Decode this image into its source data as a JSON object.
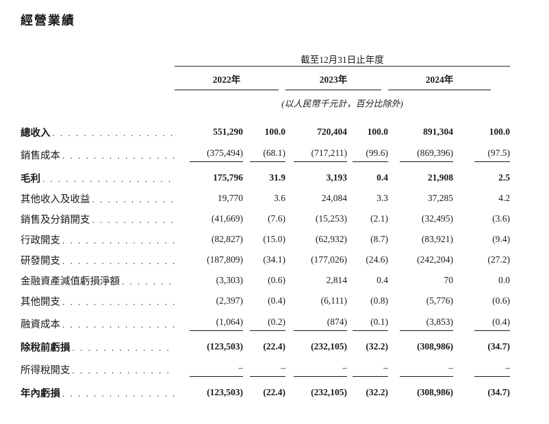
{
  "page": {
    "title": "經營業績"
  },
  "colors": {
    "text": "#1a1a1a",
    "header_rule": "#8a8a8a",
    "row_rule": "#1a1a1a",
    "background": "#ffffff"
  },
  "table": {
    "period_header": "截至12月31日止年度",
    "year_headers": [
      "2022年",
      "2023年",
      "2024年"
    ],
    "unit_note": "(以人民幣千元計，百分比除外)",
    "rows": [
      {
        "label": "總收入",
        "bold": true,
        "underline": false,
        "values": [
          "551,290",
          "100.0",
          "720,404",
          "100.0",
          "891,304",
          "100.0"
        ]
      },
      {
        "label": "銷售成本",
        "bold": false,
        "underline": true,
        "values": [
          "(375,494)",
          "(68.1)",
          "(717,211)",
          "(99.6)",
          "(869,396)",
          "(97.5)"
        ]
      },
      {
        "label": "毛利",
        "bold": true,
        "underline": false,
        "values": [
          "175,796",
          "31.9",
          "3,193",
          "0.4",
          "21,908",
          "2.5"
        ]
      },
      {
        "label": "其他收入及收益",
        "bold": false,
        "underline": false,
        "values": [
          "19,770",
          "3.6",
          "24,084",
          "3.3",
          "37,285",
          "4.2"
        ]
      },
      {
        "label": "銷售及分銷開支",
        "bold": false,
        "underline": false,
        "values": [
          "(41,669)",
          "(7.6)",
          "(15,253)",
          "(2.1)",
          "(32,495)",
          "(3.6)"
        ]
      },
      {
        "label": "行政開支",
        "bold": false,
        "underline": false,
        "values": [
          "(82,827)",
          "(15.0)",
          "(62,932)",
          "(8.7)",
          "(83,921)",
          "(9.4)"
        ]
      },
      {
        "label": "研發開支",
        "bold": false,
        "underline": false,
        "values": [
          "(187,809)",
          "(34.1)",
          "(177,026)",
          "(24.6)",
          "(242,204)",
          "(27.2)"
        ]
      },
      {
        "label": "金融資產減值虧損淨額",
        "bold": false,
        "underline": false,
        "values": [
          "(3,303)",
          "(0.6)",
          "2,814",
          "0.4",
          "70",
          "0.0"
        ]
      },
      {
        "label": "其他開支",
        "bold": false,
        "underline": false,
        "values": [
          "(2,397)",
          "(0.4)",
          "(6,111)",
          "(0.8)",
          "(5,776)",
          "(0.6)"
        ]
      },
      {
        "label": "融資成本",
        "bold": false,
        "underline": true,
        "values": [
          "(1,064)",
          "(0.2)",
          "(874)",
          "(0.1)",
          "(3,853)",
          "(0.4)"
        ]
      },
      {
        "label": "除稅前虧損",
        "bold": true,
        "underline": false,
        "values": [
          "(123,503)",
          "(22.4)",
          "(232,105)",
          "(32.2)",
          "(308,986)",
          "(34.7)"
        ]
      },
      {
        "label": "所得稅開支",
        "bold": false,
        "underline": true,
        "values": [
          "–",
          "–",
          "–",
          "–",
          "–",
          "–"
        ]
      },
      {
        "label": "年內虧損",
        "bold": true,
        "underline": false,
        "values": [
          "(123,503)",
          "(22.4)",
          "(232,105)",
          "(32.2)",
          "(308,986)",
          "(34.7)"
        ]
      }
    ]
  }
}
